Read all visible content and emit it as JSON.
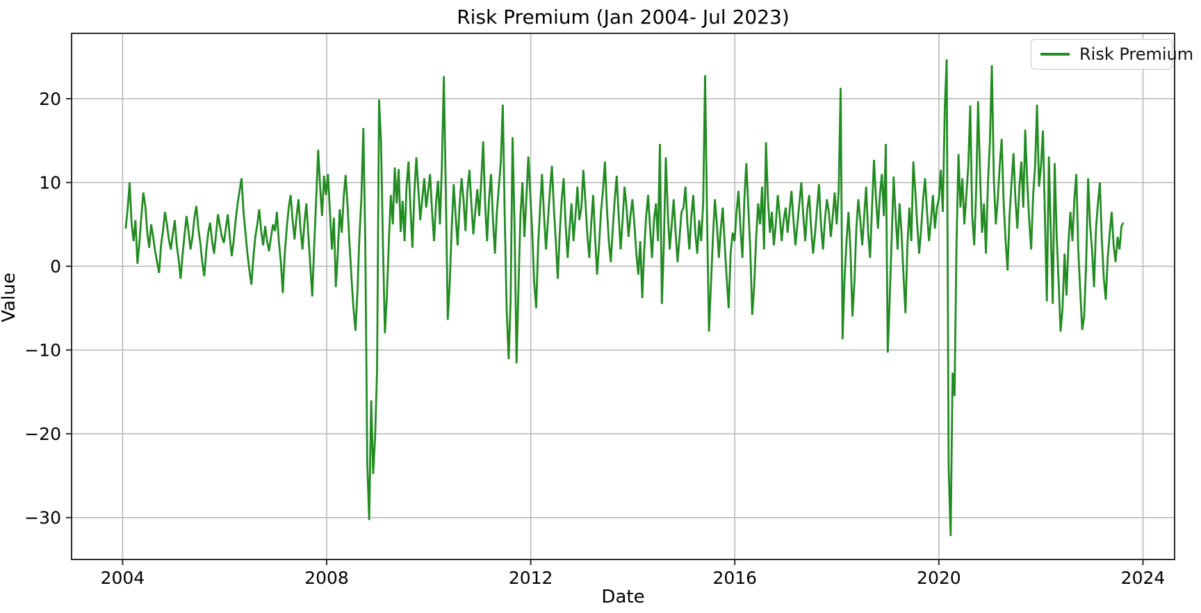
{
  "figure": {
    "title": "Risk Premium (Jan 2004- Jul 2023)",
    "xlabel": "Date",
    "ylabel": "Value",
    "legend_label": "Risk Premium"
  },
  "colors": {
    "line": "#228B22",
    "grid": "#b3b3b3",
    "spine": "#2b2b2b",
    "tick_text": "#000000",
    "legend_border": "#c9c9c9",
    "background": "#ffffff"
  },
  "chart_data": {
    "type": "line",
    "title": "Risk Premium (Jan 2004- Jul 2023)",
    "xlabel": "Date",
    "ylabel": "Value",
    "grid": true,
    "legend_position": "upper right",
    "legend_entries": [
      "Risk Premium"
    ],
    "xlim": [
      2003.0,
      2024.62
    ],
    "ylim": [
      -35.0,
      27.8
    ],
    "xticks": [
      2004,
      2008,
      2012,
      2016,
      2020,
      2024
    ],
    "xtick_labels": [
      "2004",
      "2008",
      "2012",
      "2016",
      "2020",
      "2024"
    ],
    "yticks": [
      -30,
      -20,
      -10,
      0,
      10,
      20
    ],
    "ytick_labels": [
      "−30",
      "−20",
      "−10",
      "0",
      "10",
      "20"
    ],
    "series": [
      {
        "name": "Risk Premium",
        "color": "#228B22",
        "x_start": 2004.06,
        "x_step": 0.0385,
        "values": [
          4.5,
          6.8,
          10.0,
          5.2,
          3.0,
          5.5,
          0.3,
          2.8,
          6.0,
          8.8,
          7.2,
          4.0,
          2.2,
          5.0,
          3.5,
          1.8,
          0.5,
          -0.8,
          2.5,
          4.2,
          6.5,
          5.0,
          3.2,
          2.0,
          3.8,
          5.5,
          2.5,
          0.8,
          -1.5,
          1.5,
          3.8,
          6.0,
          4.2,
          2.0,
          3.5,
          5.8,
          7.2,
          4.5,
          2.8,
          0.5,
          -1.2,
          1.8,
          4.0,
          5.2,
          3.0,
          1.5,
          3.8,
          6.2,
          4.8,
          3.5,
          2.8,
          4.5,
          6.2,
          3.5,
          1.2,
          3.0,
          5.5,
          7.5,
          9.0,
          10.5,
          6.5,
          4.0,
          1.5,
          -0.5,
          -2.2,
          1.0,
          3.5,
          5.0,
          6.8,
          4.2,
          2.5,
          4.8,
          3.0,
          1.8,
          3.5,
          5.0,
          4.2,
          6.5,
          3.0,
          0.5,
          -3.2,
          1.5,
          4.5,
          7.0,
          8.5,
          5.5,
          3.2,
          6.0,
          8.0,
          4.5,
          2.0,
          5.2,
          7.5,
          3.8,
          0.0,
          -3.6,
          2.5,
          8.0,
          13.9,
          9.5,
          6.0,
          10.8,
          8.5,
          11.0,
          6.5,
          2.0,
          5.8,
          -2.5,
          1.5,
          6.8,
          4.0,
          8.2,
          10.9,
          7.0,
          2.5,
          -1.5,
          -5.0,
          -7.7,
          -3.0,
          3.5,
          8.0,
          16.5,
          2.8,
          -23.5,
          -30.3,
          -16.0,
          -24.8,
          -20.4,
          -12.5,
          19.9,
          14.9,
          2.5,
          -8.0,
          -3.5,
          3.0,
          8.5,
          5.0,
          11.8,
          7.5,
          11.6,
          4.1,
          7.8,
          3.0,
          9.5,
          12.5,
          6.8,
          2.2,
          8.8,
          13.0,
          9.2,
          5.5,
          8.0,
          10.5,
          7.0,
          9.0,
          11.0,
          6.5,
          3.0,
          7.5,
          10.2,
          5.0,
          12.0,
          22.7,
          8.5,
          -6.4,
          -2.0,
          4.5,
          9.8,
          6.0,
          2.5,
          7.2,
          10.5,
          8.0,
          4.2,
          9.0,
          11.5,
          7.5,
          3.8,
          6.5,
          9.2,
          6.0,
          10.0,
          14.9,
          7.5,
          3.0,
          8.0,
          11.0,
          5.5,
          1.5,
          6.5,
          9.5,
          12.5,
          19.3,
          6.0,
          -5.5,
          -11.1,
          -4.0,
          15.4,
          4.5,
          -11.6,
          -2.5,
          6.0,
          10.0,
          3.5,
          8.0,
          13.1,
          8.5,
          4.0,
          -2.0,
          -5.0,
          2.5,
          7.0,
          11.0,
          6.0,
          2.0,
          5.5,
          9.0,
          12.0,
          7.0,
          3.0,
          -1.5,
          4.0,
          8.0,
          10.5,
          5.0,
          1.0,
          4.5,
          7.5,
          3.0,
          6.0,
          9.5,
          5.5,
          7.0,
          11.5,
          8.0,
          4.0,
          1.0,
          5.0,
          8.5,
          3.5,
          -1.0,
          2.5,
          6.5,
          9.0,
          12.5,
          7.0,
          3.0,
          0.5,
          4.5,
          8.0,
          10.8,
          6.0,
          2.0,
          5.5,
          9.5,
          7.0,
          3.5,
          6.0,
          8.0,
          5.0,
          1.5,
          -1.0,
          3.0,
          -3.8,
          2.0,
          6.0,
          8.5,
          4.5,
          1.0,
          5.5,
          7.5,
          3.0,
          14.6,
          -4.5,
          2.5,
          13.0,
          6.5,
          2.0,
          5.0,
          8.0,
          4.0,
          0.5,
          3.5,
          6.5,
          7.0,
          9.5,
          5.0,
          2.0,
          6.0,
          8.5,
          4.0,
          1.5,
          5.5,
          3.0,
          7.5,
          22.8,
          6.0,
          -7.8,
          -2.0,
          3.5,
          8.0,
          5.0,
          1.0,
          4.5,
          7.0,
          2.5,
          -1.5,
          -5.0,
          1.5,
          4.0,
          3.0,
          6.5,
          9.0,
          4.5,
          1.0,
          8.0,
          12.3,
          7.0,
          2.0,
          -5.8,
          -2.5,
          3.5,
          7.5,
          5.0,
          9.5,
          2.0,
          14.8,
          8.0,
          4.0,
          6.5,
          2.5,
          5.0,
          8.5,
          6.0,
          3.0,
          5.5,
          7.0,
          4.0,
          6.5,
          9.0,
          5.5,
          2.5,
          5.0,
          7.5,
          10.0,
          6.0,
          3.0,
          6.8,
          8.5,
          4.5,
          1.5,
          4.0,
          7.0,
          9.8,
          5.0,
          2.0,
          5.5,
          8.0,
          6.5,
          3.5,
          6.0,
          8.8,
          5.0,
          9.0,
          21.3,
          -8.7,
          -1.5,
          3.0,
          6.5,
          2.0,
          -6.0,
          -2.0,
          4.5,
          8.0,
          5.5,
          2.5,
          6.0,
          9.5,
          4.0,
          1.0,
          7.0,
          12.7,
          8.0,
          4.5,
          8.5,
          11.0,
          6.0,
          14.6,
          -10.3,
          -4.0,
          3.5,
          10.7,
          6.0,
          2.0,
          7.5,
          4.0,
          -1.0,
          -5.6,
          2.5,
          7.0,
          3.0,
          12.5,
          9.0,
          5.0,
          1.5,
          4.5,
          8.0,
          10.5,
          6.5,
          3.0,
          5.5,
          8.5,
          4.5,
          7.0,
          8.0,
          11.5,
          6.5,
          18.6,
          24.7,
          -23.9,
          -32.2,
          -12.7,
          -15.5,
          2.6,
          13.4,
          7.0,
          10.5,
          5.0,
          8.5,
          12.0,
          19.2,
          6.0,
          2.5,
          9.0,
          19.7,
          11.0,
          4.0,
          7.5,
          1.5,
          10.0,
          15.0,
          24.0,
          10.5,
          5.0,
          8.0,
          12.0,
          15.2,
          7.5,
          3.0,
          -0.5,
          6.0,
          10.0,
          13.5,
          8.0,
          4.5,
          9.5,
          12.5,
          7.0,
          16.3,
          10.0,
          5.5,
          2.0,
          8.5,
          12.0,
          19.3,
          9.5,
          12.0,
          16.2,
          6.0,
          -4.2,
          13.1,
          4.0,
          -4.5,
          12.3,
          3.5,
          -2.0,
          -7.8,
          -5.0,
          1.5,
          -3.5,
          2.8,
          6.5,
          3.0,
          8.0,
          11.0,
          2.0,
          -3.0,
          -7.6,
          -6.0,
          0.5,
          10.5,
          5.0,
          2.0,
          -2.5,
          4.5,
          7.5,
          10.0,
          3.0,
          -1.5,
          -4.0,
          1.0,
          4.0,
          6.5,
          2.5,
          0.5,
          3.5,
          2.0,
          4.8,
          5.2
        ]
      }
    ]
  }
}
